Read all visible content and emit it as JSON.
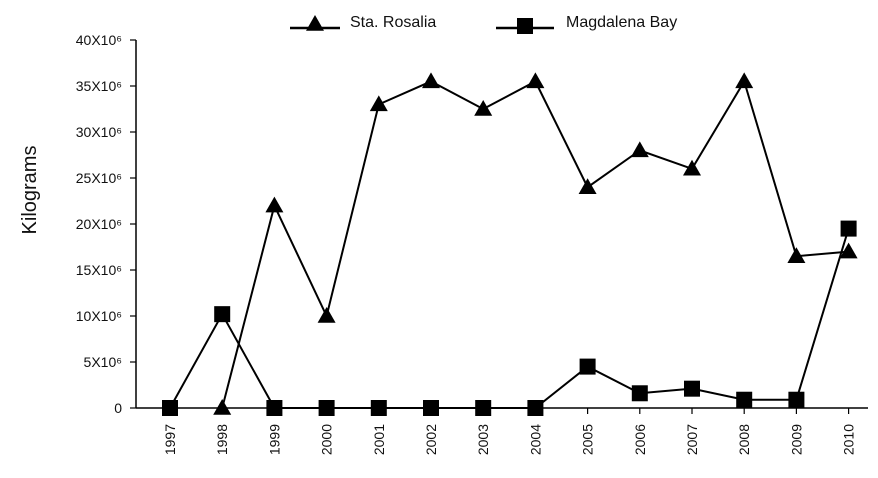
{
  "chart_data": {
    "type": "line",
    "ylabel": "Kilograms",
    "xlabel": "",
    "title": "",
    "legend_position": "top",
    "grid": false,
    "x": [
      "1997",
      "1998",
      "1999",
      "2000",
      "2001",
      "2002",
      "2003",
      "2004",
      "2005",
      "2006",
      "2007",
      "2008",
      "2009",
      "2010"
    ],
    "ylim": [
      0,
      40000000
    ],
    "y_ticks": [
      {
        "value": 0,
        "label": "0"
      },
      {
        "value": 5000000,
        "label": "5X10⁶"
      },
      {
        "value": 10000000,
        "label": "10X10⁶"
      },
      {
        "value": 15000000,
        "label": "15X10⁶"
      },
      {
        "value": 20000000,
        "label": "20X10⁶"
      },
      {
        "value": 25000000,
        "label": "25X10⁶"
      },
      {
        "value": 30000000,
        "label": "30X10⁶"
      },
      {
        "value": 35000000,
        "label": "35X10⁶"
      },
      {
        "value": 40000000,
        "label": "40X10⁶"
      }
    ],
    "series": [
      {
        "name": "Sta. Rosalia",
        "marker": "triangle",
        "color": "#000000",
        "values": [
          null,
          0,
          22000000,
          10000000,
          33000000,
          35500000,
          32500000,
          35500000,
          24000000,
          28000000,
          26000000,
          35500000,
          16500000,
          17000000
        ]
      },
      {
        "name": "Magdalena Bay",
        "marker": "square",
        "color": "#000000",
        "values": [
          0,
          10200000,
          0,
          0,
          0,
          0,
          0,
          0,
          4500000,
          1600000,
          2100000,
          900000,
          900000,
          19500000
        ]
      }
    ]
  }
}
